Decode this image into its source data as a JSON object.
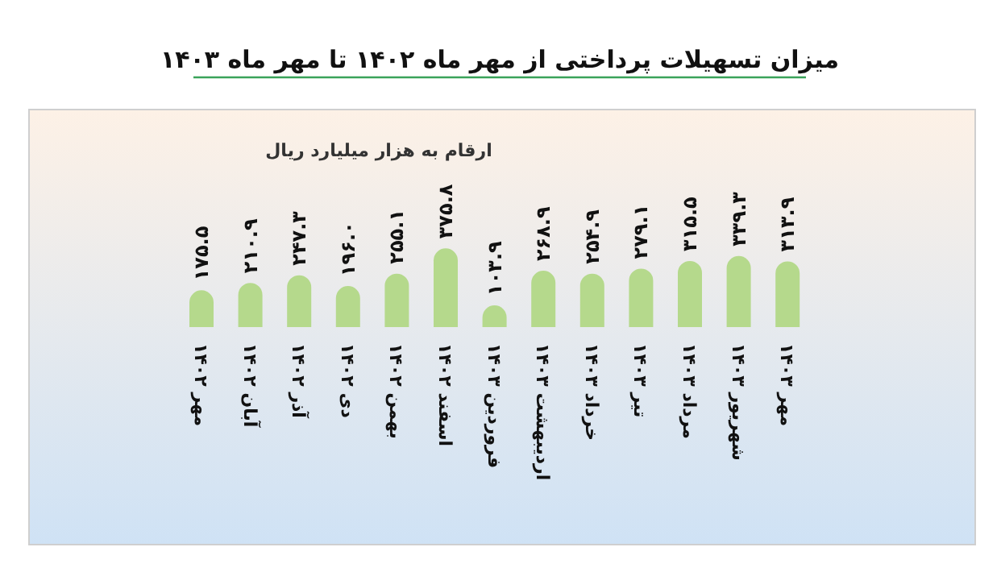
{
  "chart_data": {
    "type": "bar",
    "title": "میزان تسهیلات پرداختی از مهر ماه ۱۴۰۲ تا مهر ماه ۱۴۰۳",
    "annotations": [
      "ارقام به هزار میلیارد ریال"
    ],
    "categories": [
      "مهر ۱۴۰۲",
      "آبان ۱۴۰۲",
      "آذر ۱۴۰۲",
      "دی ۱۴۰۲",
      "بهمن ۱۴۰۲",
      "اسفند ۱۴۰۲",
      "فروردین ۱۴۰۳",
      "اردیبهشت ۱۴۰۳",
      "خرداد ۱۴۰۳",
      "تیر ۱۴۰۳",
      "مرداد ۱۴۰۳",
      "شهریور ۱۴۰۳",
      "مهر ۱۴۰۳"
    ],
    "values": [
      175.5,
      210.9,
      247.3,
      196.0,
      255.1,
      375.8,
      103.9,
      268.9,
      254.9,
      279.1,
      315.5,
      339.3,
      313.9
    ],
    "value_labels": [
      "۱۷۵.۵",
      "۲۱۰.۹",
      "۲۴۷.۳",
      "۱۹۶.۰",
      "۲۵۵.۱",
      "۳۷۵.۸",
      "۱۰۳.۹",
      "۲۶۸.۹",
      "۲۵۴.۹",
      "۲۷۹.۱",
      "۳۱۵.۵",
      "۳۳۹.۳",
      "۳۱۳.۹"
    ],
    "color": "#b5d98c"
  }
}
